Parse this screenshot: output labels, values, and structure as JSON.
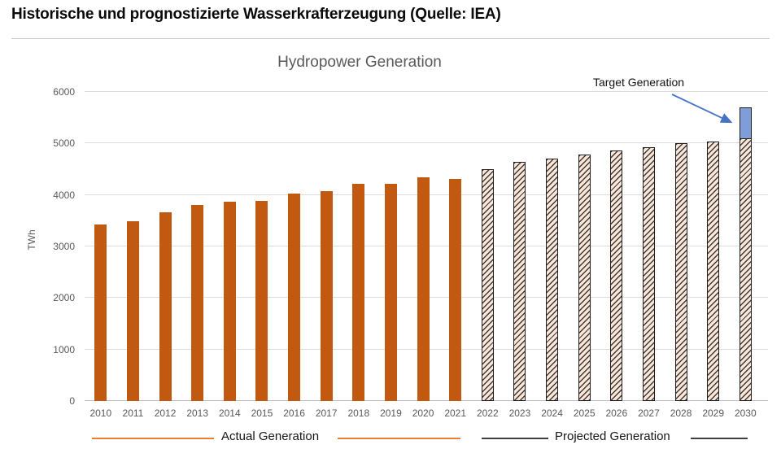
{
  "header": {
    "title": "Historische und prognostizierte Wasserkrafterzeugung (Quelle: IEA)"
  },
  "chart": {
    "title": "Hydropower Generation",
    "ylabel": "TWh",
    "annotation": {
      "label": "Target Generation"
    },
    "legend": {
      "actual": "Actual Generation",
      "projected": "Projected Generation"
    }
  },
  "chart_data": {
    "type": "bar",
    "title": "Hydropower Generation",
    "xlabel": "",
    "ylabel": "TWh",
    "ylim": [
      0,
      6000
    ],
    "yticks": [
      0,
      1000,
      2000,
      3000,
      4000,
      5000,
      6000
    ],
    "grid": true,
    "legend_position": "bottom",
    "categories": [
      "2010",
      "2011",
      "2012",
      "2013",
      "2014",
      "2015",
      "2016",
      "2017",
      "2018",
      "2019",
      "2020",
      "2021",
      "2022",
      "2023",
      "2024",
      "2025",
      "2026",
      "2027",
      "2028",
      "2029",
      "2030"
    ],
    "series": [
      {
        "name": "Actual Generation",
        "style": "solid-orange",
        "values": [
          3430,
          3490,
          3660,
          3810,
          3870,
          3890,
          4030,
          4070,
          4220,
          4210,
          4340,
          4310,
          null,
          null,
          null,
          null,
          null,
          null,
          null,
          null,
          null
        ]
      },
      {
        "name": "Projected Generation",
        "style": "hatched",
        "values": [
          null,
          null,
          null,
          null,
          null,
          null,
          null,
          null,
          null,
          null,
          null,
          null,
          4500,
          4650,
          4710,
          4790,
          4860,
          4930,
          5000,
          5040,
          5100
        ]
      },
      {
        "name": "Target Generation",
        "style": "solid-blue-stacked-top",
        "values": [
          null,
          null,
          null,
          null,
          null,
          null,
          null,
          null,
          null,
          null,
          null,
          null,
          null,
          null,
          null,
          null,
          null,
          null,
          null,
          null,
          5700
        ]
      }
    ],
    "colors": {
      "actual_bar": "#c25911",
      "projected_fill": "#fbe5d6",
      "projected_hatch": "#3a3a3a",
      "target_fill": "#7f9dd6",
      "bar_border": "#1f1f1f",
      "legend_actual_line": "#ed7d31",
      "legend_projected_line": "#404040",
      "annotation_arrow": "#4472c4"
    }
  }
}
